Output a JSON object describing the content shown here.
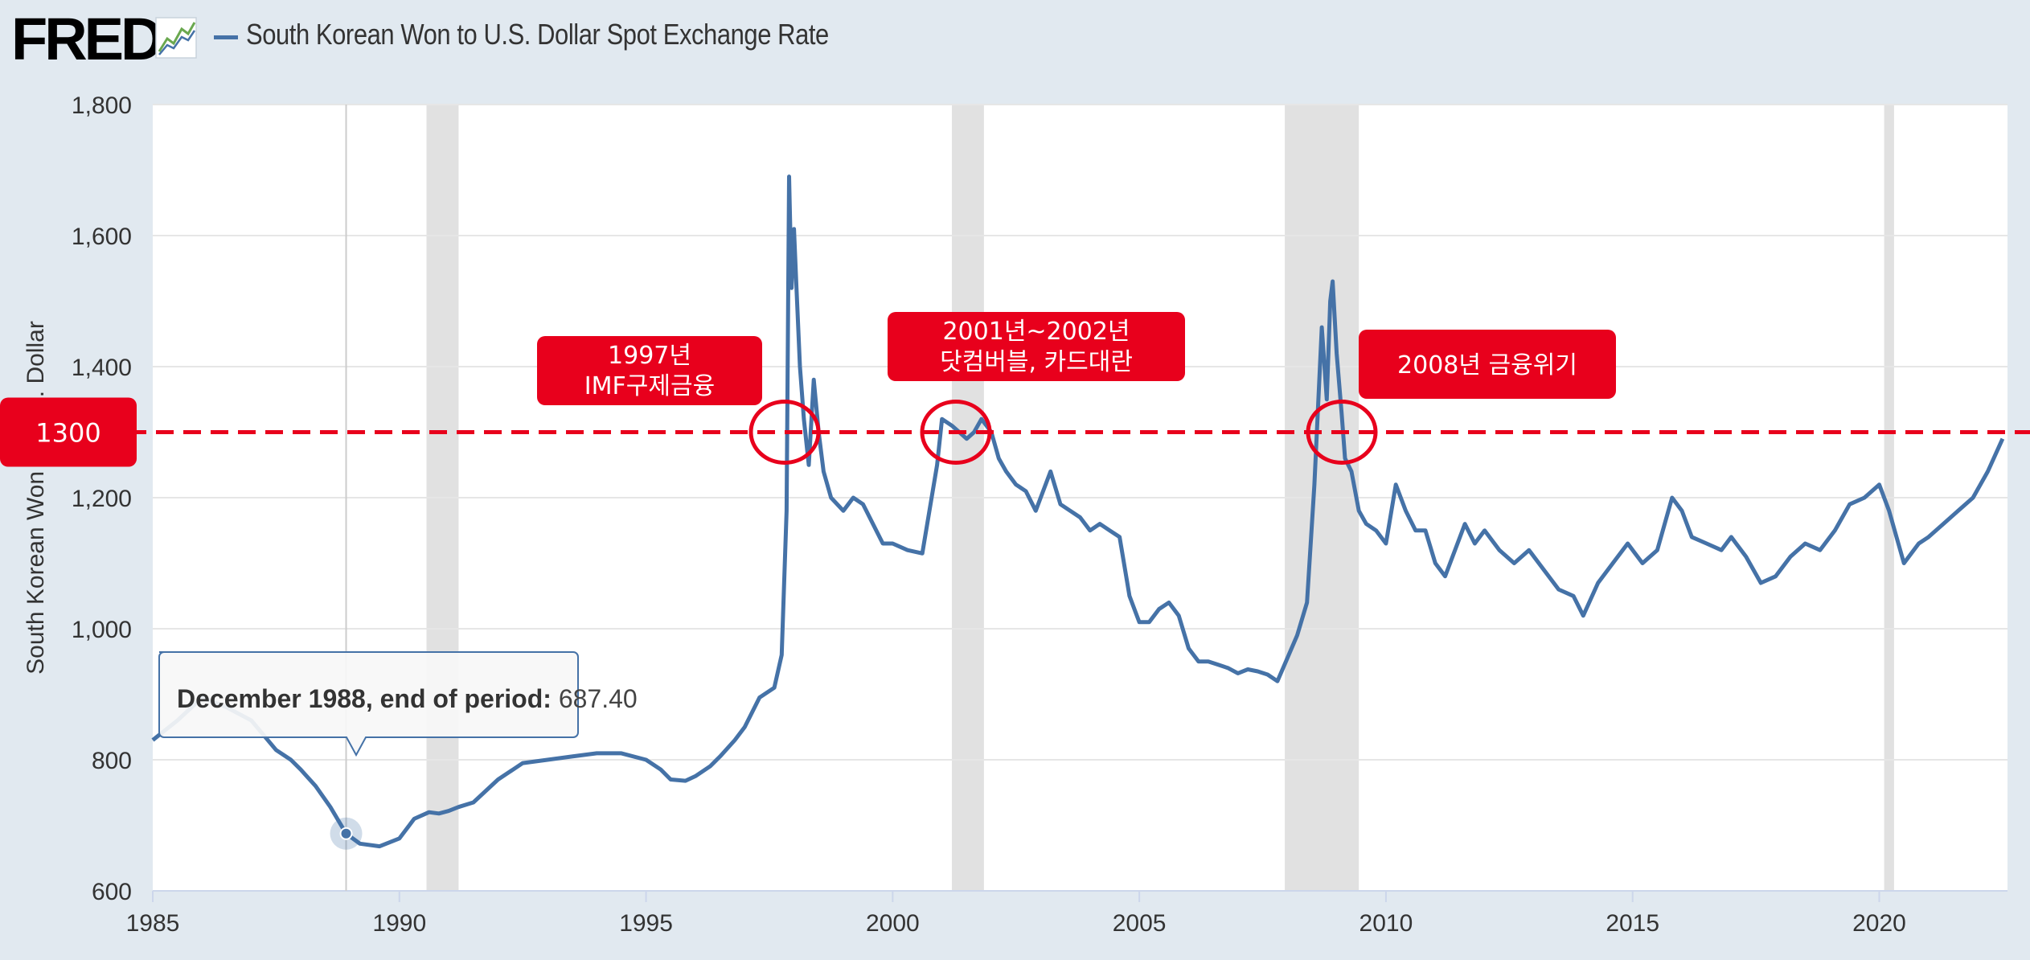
{
  "header": {
    "logo_text": "FRED",
    "series_title": "South Korean Won to U.S. Dollar Spot Exchange Rate"
  },
  "colors": {
    "series": "#4572a7",
    "annotation": "#e8001c",
    "recession": "#e1e1e1",
    "background": "#e1e9f0",
    "plot": "#ffffff"
  },
  "chart_data": {
    "type": "line",
    "title": "South Korean Won to U.S. Dollar Spot Exchange Rate",
    "xlabel": "",
    "ylabel": "South Korean Won to U.S. Dollar",
    "ylim": [
      600,
      1800
    ],
    "xlim": [
      1985,
      2022.6
    ],
    "x_ticks": [
      "1985",
      "1990",
      "1995",
      "2000",
      "2005",
      "2010",
      "2015",
      "2020"
    ],
    "x_tick_values": [
      1985,
      1990,
      1995,
      2000,
      2005,
      2010,
      2015,
      2020
    ],
    "y_ticks": [
      "600",
      "800",
      "1,000",
      "1,200",
      "1,400",
      "1,600",
      "1,800"
    ],
    "y_tick_values": [
      600,
      800,
      1000,
      1200,
      1400,
      1600,
      1800
    ],
    "grid": true,
    "recessions": [
      [
        1990.55,
        1991.2
      ],
      [
        2001.2,
        2001.85
      ],
      [
        2007.95,
        2009.45
      ],
      [
        2020.1,
        2020.3
      ]
    ],
    "series": [
      {
        "name": "South Korean Won to U.S. Dollar Spot Exchange Rate",
        "x": [
          1985.0,
          1985.5,
          1986.0,
          1986.5,
          1987.0,
          1987.5,
          1987.8,
          1988.0,
          1988.3,
          1988.6,
          1988.92,
          1989.2,
          1989.6,
          1990.0,
          1990.3,
          1990.6,
          1990.8,
          1991.0,
          1991.2,
          1991.5,
          1992.0,
          1992.5,
          1993.0,
          1993.5,
          1994.0,
          1994.5,
          1995.0,
          1995.3,
          1995.5,
          1995.8,
          1996.0,
          1996.3,
          1996.5,
          1996.8,
          1997.0,
          1997.3,
          1997.6,
          1997.75,
          1997.85,
          1997.9,
          1997.95,
          1998.0,
          1998.05,
          1998.12,
          1998.2,
          1998.3,
          1998.4,
          1998.5,
          1998.6,
          1998.75,
          1999.0,
          1999.2,
          1999.4,
          1999.6,
          1999.8,
          2000.0,
          2000.3,
          2000.6,
          2000.9,
          2001.0,
          2001.2,
          2001.35,
          2001.5,
          2001.65,
          2001.8,
          2002.0,
          2002.15,
          2002.3,
          2002.5,
          2002.7,
          2002.9,
          2003.0,
          2003.2,
          2003.4,
          2003.6,
          2003.8,
          2004.0,
          2004.2,
          2004.4,
          2004.6,
          2004.8,
          2005.0,
          2005.2,
          2005.4,
          2005.6,
          2005.8,
          2006.0,
          2006.2,
          2006.4,
          2006.6,
          2006.8,
          2007.0,
          2007.2,
          2007.4,
          2007.6,
          2007.8,
          2008.0,
          2008.2,
          2008.4,
          2008.55,
          2008.7,
          2008.8,
          2008.87,
          2008.92,
          2009.0,
          2009.1,
          2009.17,
          2009.3,
          2009.45,
          2009.6,
          2009.8,
          2010.0,
          2010.2,
          2010.4,
          2010.6,
          2010.8,
          2011.0,
          2011.2,
          2011.4,
          2011.6,
          2011.8,
          2012.0,
          2012.3,
          2012.6,
          2012.9,
          2013.2,
          2013.5,
          2013.8,
          2014.0,
          2014.3,
          2014.6,
          2014.9,
          2015.2,
          2015.5,
          2015.8,
          2016.0,
          2016.2,
          2016.5,
          2016.8,
          2017.0,
          2017.3,
          2017.6,
          2017.9,
          2018.2,
          2018.5,
          2018.8,
          2019.1,
          2019.4,
          2019.7,
          2020.0,
          2020.2,
          2020.5,
          2020.8,
          2021.0,
          2021.3,
          2021.6,
          2021.9,
          2022.2,
          2022.5
        ],
        "values": [
          830,
          860,
          895,
          880,
          860,
          815,
          800,
          785,
          760,
          728,
          687.4,
          672,
          668,
          680,
          710,
          720,
          718,
          722,
          728,
          735,
          770,
          795,
          800,
          805,
          810,
          810,
          800,
          785,
          770,
          768,
          775,
          790,
          805,
          830,
          850,
          895,
          910,
          960,
          1180,
          1690,
          1520,
          1610,
          1520,
          1400,
          1320,
          1250,
          1380,
          1300,
          1240,
          1200,
          1180,
          1200,
          1190,
          1160,
          1130,
          1130,
          1120,
          1115,
          1250,
          1320,
          1310,
          1300,
          1290,
          1300,
          1320,
          1300,
          1260,
          1240,
          1220,
          1210,
          1180,
          1200,
          1240,
          1190,
          1180,
          1170,
          1150,
          1160,
          1150,
          1140,
          1050,
          1010,
          1010,
          1030,
          1040,
          1020,
          970,
          950,
          950,
          945,
          940,
          932,
          938,
          935,
          930,
          920,
          955,
          990,
          1040,
          1220,
          1460,
          1350,
          1500,
          1530,
          1420,
          1330,
          1260,
          1240,
          1180,
          1160,
          1150,
          1130,
          1220,
          1180,
          1150,
          1150,
          1100,
          1080,
          1120,
          1160,
          1130,
          1150,
          1120,
          1100,
          1120,
          1090,
          1060,
          1050,
          1020,
          1070,
          1100,
          1130,
          1100,
          1120,
          1200,
          1180,
          1140,
          1130,
          1120,
          1140,
          1110,
          1070,
          1080,
          1110,
          1130,
          1120,
          1150,
          1190,
          1200,
          1220,
          1180,
          1100,
          1130,
          1140,
          1160,
          1180,
          1200,
          1240,
          1290
        ]
      }
    ],
    "tooltip": {
      "label": "December 1988, end of period:",
      "value": "687.40",
      "x": 1988.92,
      "y": 687.4
    },
    "reference_line": {
      "y": 1300,
      "label": "1300"
    },
    "annotations": [
      {
        "lines": [
          "1997년",
          "IMF구제금융"
        ],
        "circle_x": 1997.85,
        "circle_y": 1300
      },
      {
        "lines": [
          "2001년~2002년",
          "닷컴버블, 카드대란"
        ],
        "circle_x": 2001.45,
        "circle_y": 1300
      },
      {
        "lines": [
          "2008년 금융위기"
        ],
        "circle_x": 2009.05,
        "circle_y": 1300
      }
    ]
  }
}
